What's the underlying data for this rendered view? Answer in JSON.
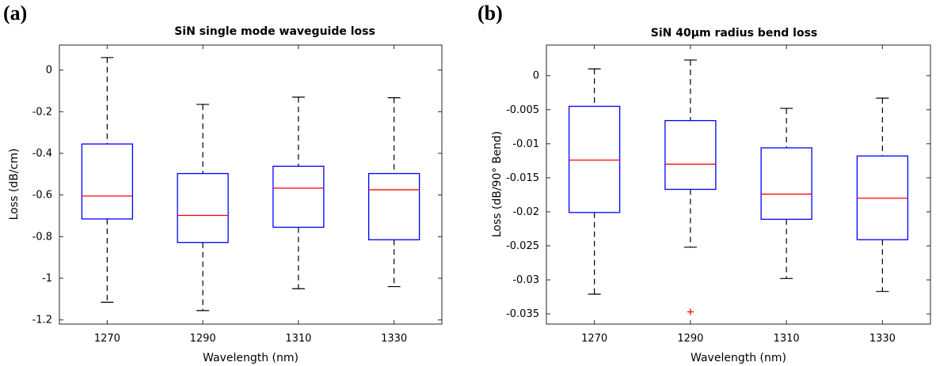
{
  "panels": [
    {
      "panel_label": "(a)",
      "title": "SiN single mode waveguide loss",
      "chart_data": {
        "type": "box",
        "title": "SiN single mode waveguide loss",
        "xlabel": "Wavelength (nm)",
        "ylabel": "Loss (dB/cm)",
        "categories": [
          "1270",
          "1290",
          "1310",
          "1330"
        ],
        "ylim": [
          -1.22,
          0.12
        ],
        "yticks": [
          0,
          -0.2,
          -0.4,
          -0.6,
          -0.8,
          -1,
          -1.2
        ],
        "ytick_labels": [
          "0",
          "-0.2",
          "-0.4",
          "-0.6",
          "-0.8",
          "-1",
          "-1.2"
        ],
        "boxes": [
          {
            "whisker_high": 0.06,
            "q3": -0.355,
            "median": -0.605,
            "q1": -0.715,
            "whisker_low": -1.115,
            "outliers": []
          },
          {
            "whisker_high": -0.165,
            "q3": -0.497,
            "median": -0.698,
            "q1": -0.828,
            "whisker_low": -1.155,
            "outliers": []
          },
          {
            "whisker_high": -0.13,
            "q3": -0.462,
            "median": -0.567,
            "q1": -0.755,
            "whisker_low": -1.05,
            "outliers": []
          },
          {
            "whisker_high": -0.133,
            "q3": -0.497,
            "median": -0.575,
            "q1": -0.815,
            "whisker_low": -1.04,
            "outliers": []
          }
        ],
        "colors": {
          "box": "#0000ff",
          "median": "#ff0000",
          "whisker": "#000000",
          "outlier": "#ff0000"
        }
      }
    },
    {
      "panel_label": "(b)",
      "title": "SiN 40μm radius bend loss",
      "chart_data": {
        "type": "box",
        "title": "SiN 40μm radius bend loss",
        "xlabel": "Wavelength (nm)",
        "ylabel": "Loss (dB/90° Bend)",
        "categories": [
          "1270",
          "1290",
          "1310",
          "1330"
        ],
        "ylim": [
          -0.0365,
          0.0045
        ],
        "yticks": [
          0,
          -0.005,
          -0.01,
          -0.015,
          -0.02,
          -0.025,
          -0.03,
          -0.035
        ],
        "ytick_labels": [
          "0",
          "-0.005",
          "-0.01",
          "-0.015",
          "-0.02",
          "-0.025",
          "-0.03",
          "-0.035"
        ],
        "boxes": [
          {
            "whisker_high": 0.001,
            "q3": -0.0045,
            "median": -0.0124,
            "q1": -0.0201,
            "whisker_low": -0.0321,
            "outliers": []
          },
          {
            "whisker_high": 0.0023,
            "q3": -0.0066,
            "median": -0.013,
            "q1": -0.0167,
            "whisker_low": -0.0252,
            "outliers": [
              -0.0347
            ]
          },
          {
            "whisker_high": -0.0048,
            "q3": -0.0106,
            "median": -0.0174,
            "q1": -0.0211,
            "whisker_low": -0.0298,
            "outliers": []
          },
          {
            "whisker_high": -0.0033,
            "q3": -0.0118,
            "median": -0.018,
            "q1": -0.0241,
            "whisker_low": -0.0317,
            "outliers": []
          }
        ],
        "colors": {
          "box": "#0000ff",
          "median": "#ff0000",
          "whisker": "#000000",
          "outlier": "#ff0000"
        }
      }
    }
  ]
}
